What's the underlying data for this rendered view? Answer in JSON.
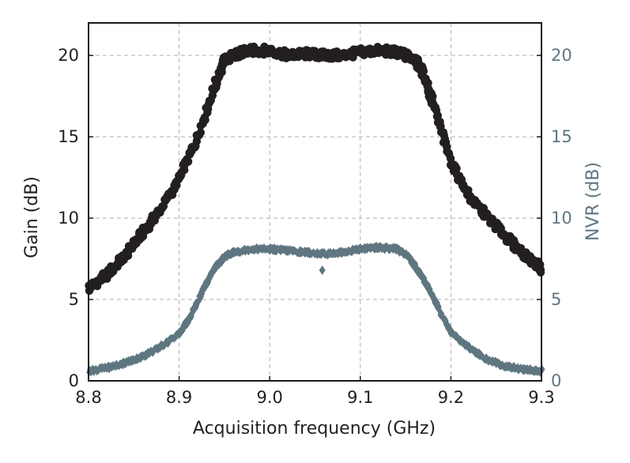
{
  "chart_data": {
    "type": "scatter",
    "title": "",
    "xlabel": "Acquisition frequency (GHz)",
    "ylabel": "Gain (dB)",
    "y2label": "NVR (dB)",
    "xlim": [
      8.8,
      9.3
    ],
    "ylim": [
      0,
      22
    ],
    "y2lim": [
      0,
      22
    ],
    "x_ticks": [
      "8.8",
      "8.9",
      "9.0",
      "9.1",
      "9.2",
      "9.3"
    ],
    "y_ticks": [
      "0",
      "5",
      "10",
      "15",
      "20"
    ],
    "y2_ticks": [
      "0",
      "5",
      "10",
      "15",
      "20"
    ],
    "grid": true,
    "colors": {
      "gain": "#231f20",
      "nvr": "#5f7681",
      "grid": "#b0b0b0",
      "axis": "#1a1a1a"
    },
    "series": [
      {
        "axis": "left",
        "marker": "circle",
        "x": [
          8.8,
          8.82,
          8.84,
          8.86,
          8.88,
          8.9,
          8.92,
          8.94,
          8.95,
          8.96,
          8.97,
          8.98,
          9.0,
          9.02,
          9.04,
          9.06,
          9.08,
          9.1,
          9.12,
          9.14,
          9.15,
          9.16,
          9.17,
          9.18,
          9.2,
          9.22,
          9.24,
          9.26,
          9.28,
          9.3
        ],
        "values": [
          5.7,
          6.5,
          7.7,
          9.1,
          10.6,
          12.4,
          14.9,
          18.2,
          19.7,
          20.0,
          20.2,
          20.3,
          20.3,
          20.0,
          20.1,
          20.0,
          20.0,
          20.2,
          20.3,
          20.2,
          20.0,
          19.8,
          18.9,
          17.1,
          13.5,
          11.3,
          10.1,
          8.9,
          7.8,
          6.9
        ]
      },
      {
        "axis": "right",
        "marker": "diamond",
        "x": [
          8.8,
          8.82,
          8.84,
          8.86,
          8.88,
          8.9,
          8.91,
          8.92,
          8.93,
          8.94,
          8.95,
          8.96,
          8.98,
          9.0,
          9.02,
          9.04,
          9.06,
          9.08,
          9.1,
          9.12,
          9.14,
          9.15,
          9.16,
          9.17,
          9.18,
          9.19,
          9.2,
          9.22,
          9.24,
          9.26,
          9.28,
          9.3
        ],
        "values": [
          0.6,
          0.8,
          1.1,
          1.5,
          2.1,
          2.9,
          3.7,
          4.8,
          6.0,
          7.0,
          7.6,
          7.9,
          8.1,
          8.1,
          8.0,
          7.9,
          7.8,
          7.9,
          8.1,
          8.2,
          8.1,
          7.8,
          7.1,
          6.2,
          5.2,
          4.0,
          3.0,
          2.0,
          1.3,
          0.9,
          0.7,
          0.6
        ]
      }
    ]
  }
}
